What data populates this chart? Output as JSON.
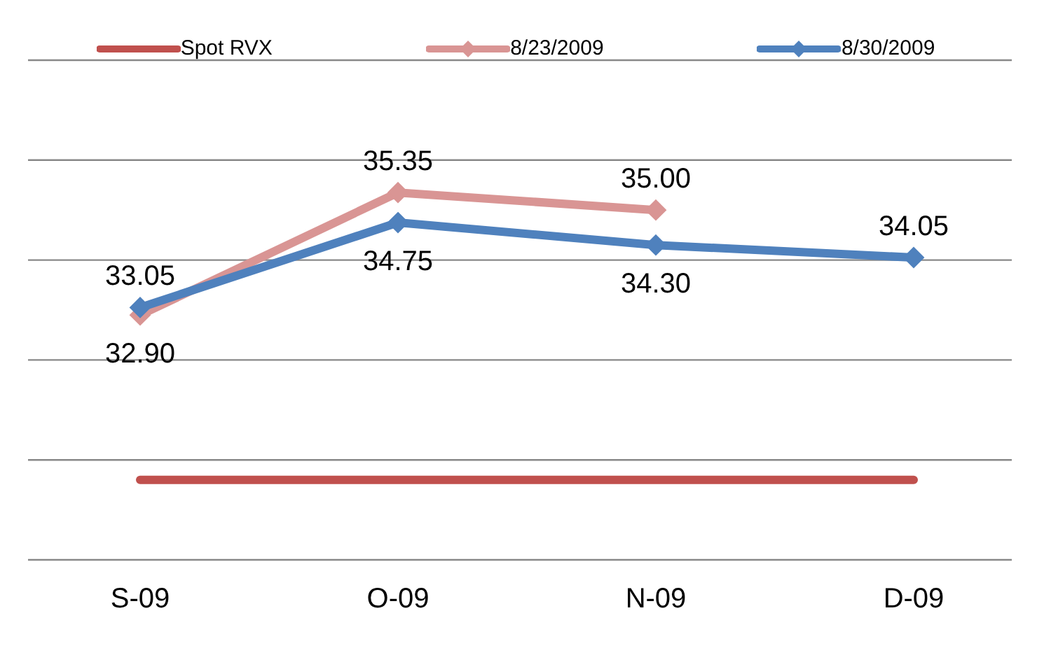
{
  "chart_data": {
    "type": "line",
    "categories": [
      "S-09",
      "O-09",
      "N-09",
      "D-09"
    ],
    "series": [
      {
        "name": "Spot RVX",
        "color": "#c0504d",
        "marker": "none",
        "values": [
          29.6,
          29.6,
          29.6,
          29.6
        ]
      },
      {
        "name": "8/23/2009",
        "color": "#d99594",
        "marker": "diamond",
        "values": [
          32.9,
          35.35,
          35.0,
          null
        ],
        "value_labels": [
          "32.90",
          "35.35",
          "35.00",
          null
        ]
      },
      {
        "name": "8/30/2009",
        "color": "#4f81bd",
        "marker": "diamond",
        "values": [
          33.05,
          34.75,
          34.3,
          34.05
        ],
        "value_labels": [
          "33.05",
          "34.75",
          "34.30",
          "34.05"
        ]
      }
    ],
    "ylim": [
      28,
      38
    ],
    "yticks": [
      {
        "value": 28,
        "label": null
      },
      {
        "value": 30,
        "label": null
      },
      {
        "value": 32,
        "label": null
      },
      {
        "value": 34,
        "label": null
      },
      {
        "value": 36,
        "label": null
      },
      {
        "value": 38,
        "label": null
      }
    ],
    "grid": "y",
    "legend": "top",
    "tick_labels": "x"
  }
}
